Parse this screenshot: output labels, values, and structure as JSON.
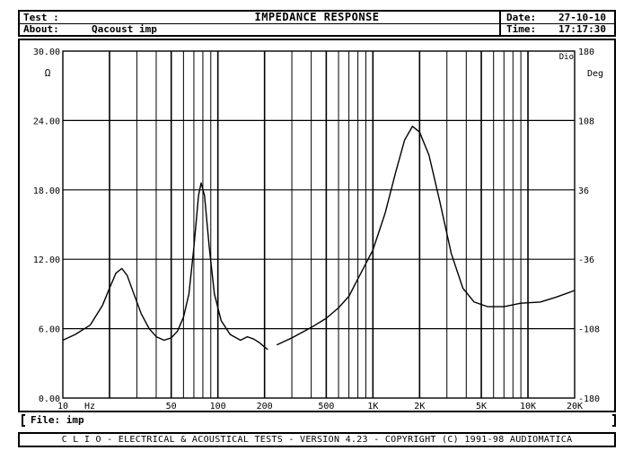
{
  "header": {
    "test_label": "Test :",
    "about_label": "About:",
    "about_value": "Qacoust imp",
    "title": "IMPEDANCE RESPONSE",
    "date_label": "Date:",
    "date_value": "27-10-10",
    "time_label": "Time:",
    "time_value": "17:17:30"
  },
  "file_bar": {
    "label": "File:",
    "value": "imp"
  },
  "footer": {
    "text": "C L I O  -  ELECTRICAL & ACOUSTICAL TESTS  -  VERSION 4.23  -  COPYRIGHT (C) 1991-98 AUDIOMATICA"
  },
  "chart_data": {
    "type": "line",
    "title": "IMPEDANCE RESPONSE",
    "xscale": "log",
    "xlim": [
      10,
      20000
    ],
    "ylim": [
      0,
      30
    ],
    "y2lim": [
      -180,
      180
    ],
    "ylabel": "Ω",
    "y2label": "Deg",
    "xunit": "Hz",
    "corner_label": "Dio",
    "grid": true,
    "y_ticks": [
      {
        "value": 0,
        "label": "0.00"
      },
      {
        "value": 6,
        "label": "6.00"
      },
      {
        "value": 12,
        "label": "12.00"
      },
      {
        "value": 18,
        "label": "18.00"
      },
      {
        "value": 24,
        "label": "24.00"
      },
      {
        "value": 30,
        "label": "30.00"
      }
    ],
    "y2_ticks": [
      {
        "value": -180,
        "label": "-180"
      },
      {
        "value": -108,
        "label": "-108"
      },
      {
        "value": -36,
        "label": "-36"
      },
      {
        "value": 36,
        "label": "36"
      },
      {
        "value": 108,
        "label": "108"
      },
      {
        "value": 180,
        "label": "180"
      }
    ],
    "x_ticks": [
      {
        "value": 10,
        "label": "10"
      },
      {
        "value": 50,
        "label": "50"
      },
      {
        "value": 100,
        "label": "100"
      },
      {
        "value": 200,
        "label": "200"
      },
      {
        "value": 500,
        "label": "500"
      },
      {
        "value": 1000,
        "label": "1K"
      },
      {
        "value": 2000,
        "label": "2K"
      },
      {
        "value": 5000,
        "label": "5K"
      },
      {
        "value": 10000,
        "label": "10K"
      },
      {
        "value": 20000,
        "label": "20K"
      }
    ],
    "series": [
      {
        "points": [
          [
            10,
            5.0
          ],
          [
            12,
            5.5
          ],
          [
            15,
            6.3
          ],
          [
            18,
            8.0
          ],
          [
            20,
            9.5
          ],
          [
            22,
            10.8
          ],
          [
            24,
            11.2
          ],
          [
            26,
            10.6
          ],
          [
            28,
            9.4
          ],
          [
            32,
            7.3
          ],
          [
            36,
            6.0
          ],
          [
            40,
            5.3
          ],
          [
            45,
            5.0
          ],
          [
            50,
            5.2
          ],
          [
            55,
            5.8
          ],
          [
            60,
            7.0
          ],
          [
            65,
            9.0
          ],
          [
            70,
            13.0
          ],
          [
            75,
            17.5
          ],
          [
            78,
            18.6
          ],
          [
            82,
            17.5
          ],
          [
            88,
            13.0
          ],
          [
            95,
            9.0
          ],
          [
            105,
            6.7
          ],
          [
            120,
            5.5
          ],
          [
            140,
            5.0
          ],
          [
            155,
            5.3
          ],
          [
            170,
            5.1
          ],
          [
            185,
            4.8
          ],
          [
            200,
            4.4
          ],
          [
            210,
            4.2
          ]
        ]
      },
      {
        "points": [
          [
            240,
            4.6
          ],
          [
            300,
            5.2
          ],
          [
            400,
            6.1
          ],
          [
            500,
            6.9
          ],
          [
            600,
            7.8
          ],
          [
            700,
            8.8
          ],
          [
            800,
            10.3
          ],
          [
            1000,
            12.8
          ],
          [
            1200,
            16.0
          ],
          [
            1400,
            19.5
          ],
          [
            1600,
            22.3
          ],
          [
            1800,
            23.5
          ],
          [
            2000,
            23.0
          ],
          [
            2300,
            21.0
          ],
          [
            2700,
            17.0
          ],
          [
            3200,
            12.5
          ],
          [
            3800,
            9.5
          ],
          [
            4500,
            8.3
          ],
          [
            5500,
            7.9
          ],
          [
            7000,
            7.9
          ],
          [
            9000,
            8.2
          ],
          [
            12000,
            8.3
          ],
          [
            15000,
            8.7
          ],
          [
            20000,
            9.3
          ]
        ]
      }
    ]
  }
}
